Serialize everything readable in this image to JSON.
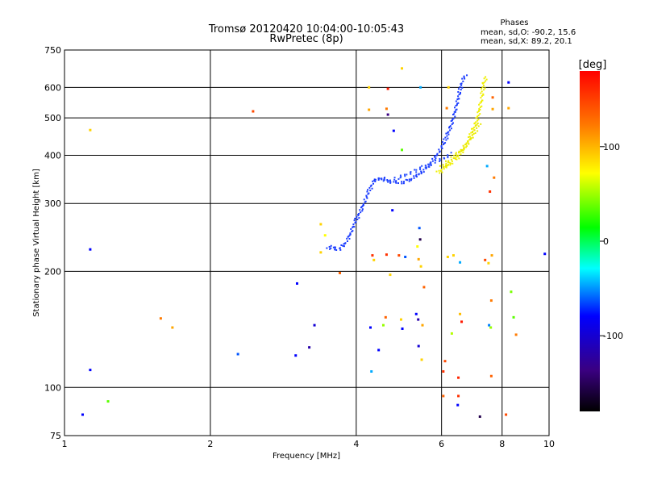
{
  "chart_data": {
    "type": "scatter",
    "title": "Tromsø 20120420 10:04:00-10:05:43",
    "subtitle": "RwPretec (8p)",
    "xlabel": "Frequency [MHz]",
    "ylabel": "Stationary phase Virtual Height [km]",
    "x_scale": "log",
    "y_scale": "log",
    "xlim": [
      1,
      10
    ],
    "ylim": [
      75,
      750
    ],
    "x_ticks": [
      1,
      2,
      4,
      6,
      8,
      10
    ],
    "x_tick_labels": [
      "1",
      "2",
      "4",
      "6",
      "8",
      "10"
    ],
    "y_ticks": [
      75,
      100,
      200,
      300,
      400,
      500,
      600,
      750
    ],
    "y_tick_labels": [
      "75",
      "100",
      "200",
      "300",
      "400",
      "500",
      "600",
      "750"
    ],
    "grid": true,
    "stats": {
      "heading": "Phases",
      "line_o": "mean, sd,O: -90.2, 15.6",
      "line_x": "mean, sd,X:  89.2, 20.1"
    },
    "colorbar": {
      "label": "[deg]",
      "range": [
        -180,
        180
      ],
      "ticks": [
        100,
        0,
        -100
      ],
      "tick_labels": [
        "100",
        "0",
        "-100"
      ]
    },
    "o_trace": [
      [
        3.5,
        228
      ],
      [
        3.55,
        232
      ],
      [
        3.6,
        230
      ],
      [
        3.65,
        228
      ],
      [
        3.7,
        229
      ],
      [
        3.75,
        232
      ],
      [
        3.8,
        236
      ],
      [
        3.85,
        243
      ],
      [
        3.9,
        252
      ],
      [
        3.95,
        263
      ],
      [
        4.0,
        272
      ],
      [
        4.05,
        281
      ],
      [
        4.1,
        290
      ],
      [
        4.15,
        300
      ],
      [
        4.2,
        312
      ],
      [
        4.25,
        323
      ],
      [
        4.3,
        333
      ],
      [
        4.35,
        342
      ],
      [
        4.4,
        347
      ],
      [
        4.5,
        349
      ],
      [
        4.6,
        346
      ],
      [
        4.7,
        342
      ],
      [
        4.8,
        341
      ],
      [
        4.9,
        340
      ],
      [
        5.0,
        341
      ],
      [
        5.1,
        343
      ],
      [
        5.2,
        346
      ],
      [
        5.3,
        352
      ],
      [
        5.4,
        358
      ],
      [
        5.5,
        365
      ],
      [
        5.6,
        373
      ],
      [
        5.7,
        382
      ],
      [
        5.8,
        393
      ],
      [
        5.9,
        405
      ],
      [
        6.0,
        420
      ],
      [
        6.1,
        437
      ],
      [
        6.2,
        458
      ],
      [
        6.3,
        485
      ],
      [
        6.4,
        520
      ],
      [
        6.5,
        565
      ],
      [
        6.55,
        590
      ],
      [
        6.6,
        612
      ],
      [
        6.65,
        632
      ],
      [
        6.7,
        640
      ],
      [
        6.75,
        645
      ]
    ],
    "o_trace_2": [
      [
        4.5,
        345
      ],
      [
        4.7,
        343
      ],
      [
        4.9,
        350
      ],
      [
        5.1,
        358
      ],
      [
        5.3,
        365
      ],
      [
        5.5,
        372
      ],
      [
        5.7,
        379
      ],
      [
        5.9,
        386
      ],
      [
        6.1,
        394
      ],
      [
        6.3,
        405
      ]
    ],
    "x_trace": [
      [
        5.9,
        360
      ],
      [
        6.0,
        366
      ],
      [
        6.1,
        372
      ],
      [
        6.2,
        378
      ],
      [
        6.3,
        384
      ],
      [
        6.4,
        390
      ],
      [
        6.5,
        398
      ],
      [
        6.6,
        407
      ],
      [
        6.7,
        418
      ],
      [
        6.8,
        432
      ],
      [
        6.9,
        450
      ],
      [
        7.0,
        470
      ],
      [
        7.1,
        495
      ],
      [
        7.2,
        530
      ],
      [
        7.25,
        560
      ],
      [
        7.3,
        590
      ],
      [
        7.35,
        615
      ],
      [
        7.4,
        640
      ]
    ],
    "x_trace_2": [
      [
        6.0,
        372
      ],
      [
        6.2,
        385
      ],
      [
        6.4,
        400
      ],
      [
        6.6,
        415
      ],
      [
        6.8,
        432
      ],
      [
        7.0,
        455
      ],
      [
        7.2,
        490
      ]
    ],
    "scatter_points": [
      {
        "x": 1.09,
        "y": 85,
        "phase": -100
      },
      {
        "x": 1.13,
        "y": 111,
        "phase": -100
      },
      {
        "x": 1.13,
        "y": 228,
        "phase": -100
      },
      {
        "x": 1.13,
        "y": 465,
        "phase": 110
      },
      {
        "x": 1.23,
        "y": 92,
        "phase": 30
      },
      {
        "x": 1.58,
        "y": 151,
        "phase": 130
      },
      {
        "x": 1.67,
        "y": 143,
        "phase": 120
      },
      {
        "x": 2.28,
        "y": 122,
        "phase": -80
      },
      {
        "x": 2.45,
        "y": 520,
        "phase": 150
      },
      {
        "x": 3.0,
        "y": 121,
        "phase": -100
      },
      {
        "x": 3.02,
        "y": 186,
        "phase": -100
      },
      {
        "x": 3.2,
        "y": 127,
        "phase": -120
      },
      {
        "x": 3.28,
        "y": 145,
        "phase": -110
      },
      {
        "x": 3.38,
        "y": 265,
        "phase": 110
      },
      {
        "x": 3.38,
        "y": 224,
        "phase": 110
      },
      {
        "x": 3.45,
        "y": 248,
        "phase": 100
      },
      {
        "x": 3.7,
        "y": 198,
        "phase": 140
      },
      {
        "x": 4.25,
        "y": 525,
        "phase": 120
      },
      {
        "x": 4.25,
        "y": 600,
        "phase": 110
      },
      {
        "x": 4.28,
        "y": 143,
        "phase": -100
      },
      {
        "x": 4.3,
        "y": 110,
        "phase": -60
      },
      {
        "x": 4.32,
        "y": 220,
        "phase": 160
      },
      {
        "x": 4.35,
        "y": 214,
        "phase": 110
      },
      {
        "x": 4.45,
        "y": 125,
        "phase": -100
      },
      {
        "x": 4.55,
        "y": 145,
        "phase": 50
      },
      {
        "x": 4.6,
        "y": 152,
        "phase": 140
      },
      {
        "x": 4.62,
        "y": 221,
        "phase": 160
      },
      {
        "x": 4.62,
        "y": 528,
        "phase": 130
      },
      {
        "x": 4.65,
        "y": 510,
        "phase": -130
      },
      {
        "x": 4.65,
        "y": 595,
        "phase": 170
      },
      {
        "x": 4.7,
        "y": 196,
        "phase": 110
      },
      {
        "x": 4.75,
        "y": 288,
        "phase": -100
      },
      {
        "x": 4.78,
        "y": 463,
        "phase": -100
      },
      {
        "x": 4.9,
        "y": 220,
        "phase": 150
      },
      {
        "x": 4.95,
        "y": 150,
        "phase": 110
      },
      {
        "x": 4.97,
        "y": 413,
        "phase": 30
      },
      {
        "x": 4.97,
        "y": 672,
        "phase": 110
      },
      {
        "x": 4.98,
        "y": 142,
        "phase": -100
      },
      {
        "x": 5.05,
        "y": 218,
        "phase": -80
      },
      {
        "x": 5.32,
        "y": 155,
        "phase": -100
      },
      {
        "x": 5.35,
        "y": 232,
        "phase": 100
      },
      {
        "x": 5.37,
        "y": 150,
        "phase": -120
      },
      {
        "x": 5.38,
        "y": 128,
        "phase": -110
      },
      {
        "x": 5.38,
        "y": 215,
        "phase": 120
      },
      {
        "x": 5.4,
        "y": 259,
        "phase": -80
      },
      {
        "x": 5.42,
        "y": 242,
        "phase": -150
      },
      {
        "x": 5.43,
        "y": 600,
        "phase": -60
      },
      {
        "x": 5.44,
        "y": 206,
        "phase": 110
      },
      {
        "x": 5.46,
        "y": 118,
        "phase": 110
      },
      {
        "x": 5.48,
        "y": 145,
        "phase": 120
      },
      {
        "x": 5.52,
        "y": 182,
        "phase": 140
      },
      {
        "x": 6.05,
        "y": 110,
        "phase": 160
      },
      {
        "x": 6.05,
        "y": 95,
        "phase": 140
      },
      {
        "x": 6.1,
        "y": 117,
        "phase": 150
      },
      {
        "x": 6.15,
        "y": 530,
        "phase": 130
      },
      {
        "x": 6.18,
        "y": 218,
        "phase": 110
      },
      {
        "x": 6.2,
        "y": 600,
        "phase": 110
      },
      {
        "x": 6.3,
        "y": 138,
        "phase": 60
      },
      {
        "x": 6.35,
        "y": 220,
        "phase": 110
      },
      {
        "x": 6.48,
        "y": 90,
        "phase": -100
      },
      {
        "x": 6.5,
        "y": 95,
        "phase": 160
      },
      {
        "x": 6.5,
        "y": 106,
        "phase": 165
      },
      {
        "x": 6.55,
        "y": 155,
        "phase": 115
      },
      {
        "x": 6.55,
        "y": 211,
        "phase": -60
      },
      {
        "x": 6.6,
        "y": 148,
        "phase": 170
      },
      {
        "x": 7.2,
        "y": 84,
        "phase": -150
      },
      {
        "x": 7.38,
        "y": 214,
        "phase": 150
      },
      {
        "x": 7.45,
        "y": 375,
        "phase": -60
      },
      {
        "x": 7.5,
        "y": 210,
        "phase": 110
      },
      {
        "x": 7.52,
        "y": 145,
        "phase": -70
      },
      {
        "x": 7.55,
        "y": 322,
        "phase": 160
      },
      {
        "x": 7.58,
        "y": 143,
        "phase": 50
      },
      {
        "x": 7.6,
        "y": 107,
        "phase": 140
      },
      {
        "x": 7.6,
        "y": 168,
        "phase": 130
      },
      {
        "x": 7.62,
        "y": 220,
        "phase": 120
      },
      {
        "x": 7.65,
        "y": 527,
        "phase": 120
      },
      {
        "x": 7.65,
        "y": 565,
        "phase": 140
      },
      {
        "x": 7.7,
        "y": 350,
        "phase": 130
      },
      {
        "x": 8.15,
        "y": 85,
        "phase": 150
      },
      {
        "x": 8.25,
        "y": 618,
        "phase": -100
      },
      {
        "x": 8.25,
        "y": 530,
        "phase": 120
      },
      {
        "x": 8.35,
        "y": 177,
        "phase": 40
      },
      {
        "x": 8.45,
        "y": 152,
        "phase": 30
      },
      {
        "x": 8.55,
        "y": 137,
        "phase": 130
      },
      {
        "x": 9.8,
        "y": 222,
        "phase": -100
      }
    ]
  }
}
